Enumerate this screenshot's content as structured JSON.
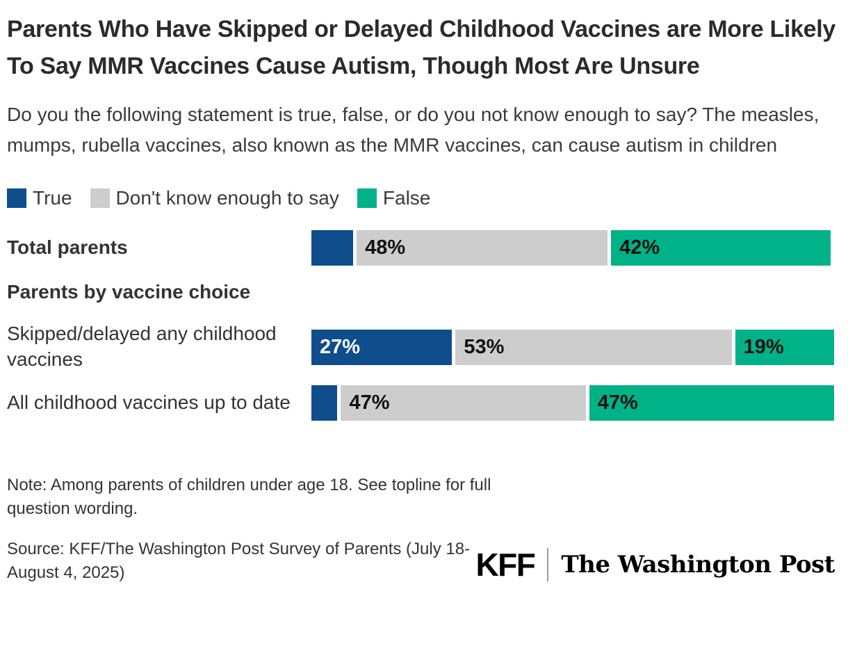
{
  "title": "Parents Who Have Skipped or Delayed Childhood Vaccines are More Likely To Say MMR Vaccines Cause Autism, Though Most Are Unsure",
  "subtitle": "Do you the following statement is true, false, or do you not know enough to say? The measles, mumps, rubella vaccines, also known as the MMR vaccines, can cause autism in children",
  "legend": [
    {
      "label": "True",
      "color": "#0F4D8C"
    },
    {
      "label": "Don't know enough to say",
      "color": "#CDCDCD"
    },
    {
      "label": "False",
      "color": "#00B287"
    }
  ],
  "section_header": "Parents by vaccine choice",
  "chart_data": {
    "type": "bar",
    "orientation": "horizontal",
    "stacked": true,
    "unit": "%",
    "xlim": [
      0,
      100
    ],
    "grid": false,
    "legend_position": "top",
    "series_names": [
      "True",
      "Don't know enough to say",
      "False"
    ],
    "series_slugs": [
      "true",
      "dont-know",
      "false"
    ],
    "colors": [
      "#0F4D8C",
      "#CDCDCD",
      "#00B287"
    ],
    "rows": [
      {
        "category": "Total parents",
        "label_bold": true,
        "values": [
          8,
          48,
          42
        ],
        "value_labels": [
          "",
          "48%",
          "42%"
        ]
      },
      {
        "category": "Skipped/delayed any childhood vaccines",
        "label_bold": false,
        "values": [
          27,
          53,
          19
        ],
        "value_labels": [
          "27%",
          "53%",
          "19%"
        ]
      },
      {
        "category": "All childhood vaccines up to date",
        "label_bold": false,
        "values": [
          5,
          47,
          47
        ],
        "value_labels": [
          "",
          "47%",
          "47%"
        ]
      }
    ]
  },
  "note": "Note: Among parents of children under age 18. See topline for full question wording.",
  "source": "Source: KFF/The Washington Post Survey of Parents (July 18-August 4, 2025)",
  "logos": {
    "kff": "KFF",
    "wapo": "The Washington Post"
  }
}
